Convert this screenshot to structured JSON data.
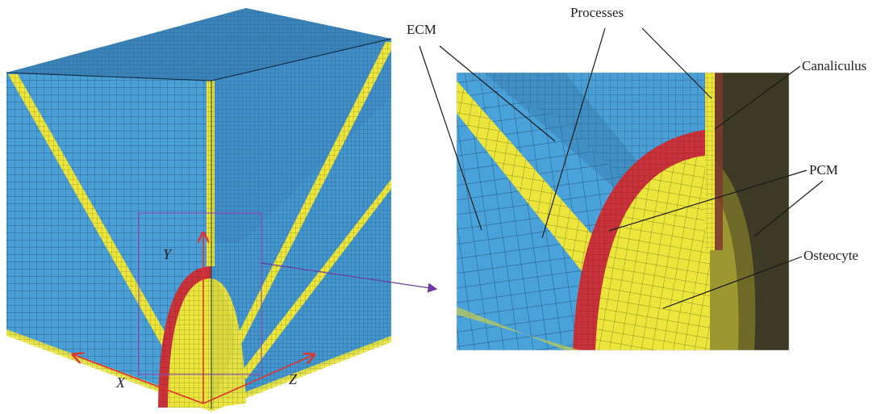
{
  "labels": {
    "ecm": "ECM",
    "processes": "Processes",
    "canaliculus": "Canaliculus",
    "pcm": "PCM",
    "osteocyte": "Osteocyte"
  },
  "axes": {
    "x": "X",
    "y": "Y",
    "z": "Z"
  },
  "colors": {
    "ecm_blue": "#4a9fd6",
    "process_yellow": "#e8e23a",
    "pcm_red": "#c8323a",
    "osteocyte_yellow": "#ece63c",
    "mesh_line": "#1d3f5e",
    "axis_red": "#e0322e",
    "zoom_box": "#8a4fb0",
    "arrow_purple": "#6a3aa0"
  }
}
